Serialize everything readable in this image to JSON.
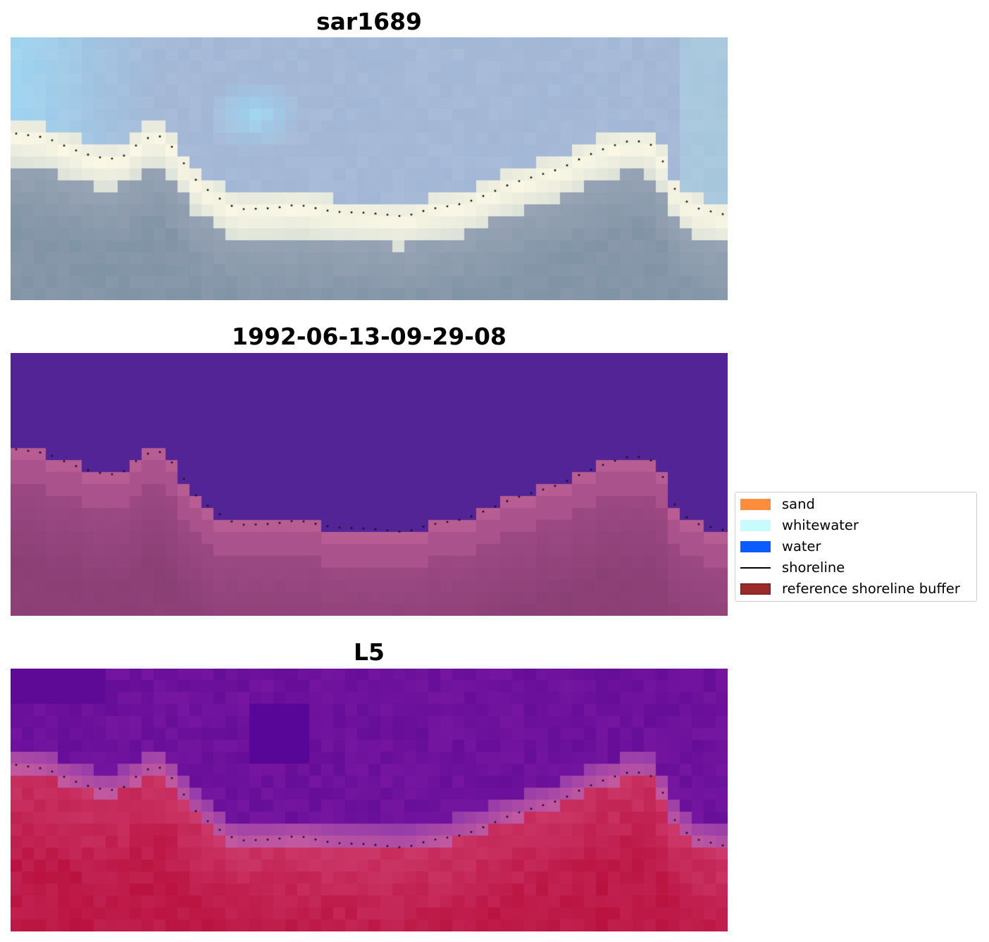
{
  "panels": [
    {
      "title": "sar1689",
      "kind": "rgb"
    },
    {
      "title": "1992-06-13-09-29-08",
      "kind": "classification"
    },
    {
      "title": "L5",
      "kind": "index"
    }
  ],
  "legend": {
    "items": [
      {
        "label": "sand",
        "color": "#ff8c3a",
        "type": "patch"
      },
      {
        "label": "whitewater",
        "color": "#c8fbfb",
        "type": "patch"
      },
      {
        "label": "water",
        "color": "#0a5cff",
        "type": "patch"
      },
      {
        "label": "shoreline",
        "color": "#000000",
        "type": "line"
      },
      {
        "label": "reference shoreline buffer",
        "color": "#9b2a2a",
        "type": "patch"
      }
    ]
  }
}
